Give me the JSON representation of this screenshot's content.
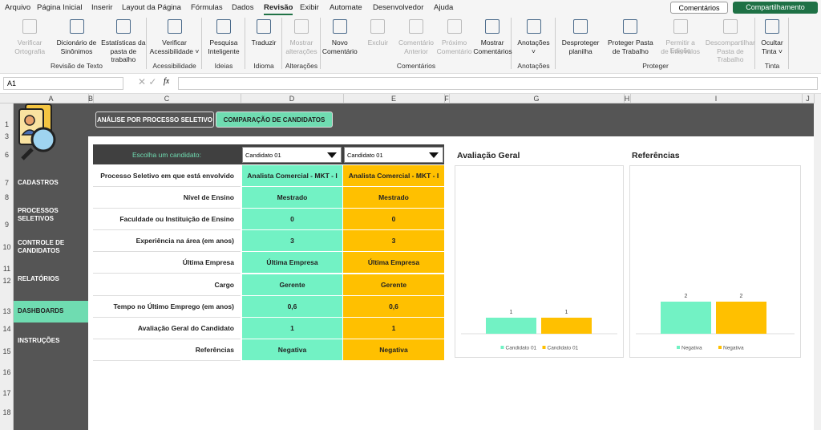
{
  "menu": {
    "tabs": [
      "Arquivo",
      "Página Inicial",
      "Inserir",
      "Layout da Página",
      "Fórmulas",
      "Dados",
      "Revisão",
      "Exibir",
      "Automate",
      "Desenvolvedor",
      "Ajuda"
    ],
    "active_tab_index": 6
  },
  "buttons": {
    "comments": "Comentários",
    "share": "Compartilhamento"
  },
  "ribbon": [
    {
      "group": "Revisão de Texto",
      "items": [
        {
          "label": [
            "Verificar",
            "Ortografia"
          ],
          "disabled": true
        },
        {
          "label": [
            "Dicionário de",
            "Sinônimos"
          ],
          "disabled": false
        },
        {
          "label": [
            "Estatísticas da",
            "pasta de trabalho"
          ],
          "disabled": false
        }
      ]
    },
    {
      "group": "Acessibilidade",
      "items": [
        {
          "label": [
            "Verificar",
            "Acessibilidade ˅"
          ],
          "disabled": false
        }
      ]
    },
    {
      "group": "Ideias",
      "items": [
        {
          "label": [
            "Pesquisa",
            "Inteligente"
          ],
          "disabled": false
        }
      ]
    },
    {
      "group": "Idioma",
      "items": [
        {
          "label": [
            "Traduzir"
          ],
          "disabled": false
        }
      ]
    },
    {
      "group": "Alterações",
      "items": [
        {
          "label": [
            "Mostrar",
            "alterações"
          ],
          "disabled": true
        }
      ]
    },
    {
      "group": "Comentários",
      "items": [
        {
          "label": [
            "Novo",
            "Comentário"
          ],
          "disabled": false
        },
        {
          "label": [
            "Excluir"
          ],
          "disabled": true
        },
        {
          "label": [
            "Comentário",
            "Anterior"
          ],
          "disabled": true
        },
        {
          "label": [
            "Próximo",
            "Comentário"
          ],
          "disabled": true
        },
        {
          "label": [
            "Mostrar",
            "Comentários"
          ],
          "disabled": false
        }
      ]
    },
    {
      "group": "Anotações",
      "items": [
        {
          "label": [
            "Anotações",
            "˅"
          ],
          "disabled": false
        }
      ]
    },
    {
      "group": "Proteger",
      "items": [
        {
          "label": [
            "Desproteger",
            "planilha"
          ],
          "disabled": false
        },
        {
          "label": [
            "Proteger Pasta",
            "de Trabalho"
          ],
          "disabled": false
        },
        {
          "label": [
            "Permitir a Edição",
            "de Intervalos"
          ],
          "disabled": true
        },
        {
          "label": [
            "Descompartilhar",
            "Pasta de Trabalho"
          ],
          "disabled": true
        }
      ]
    },
    {
      "group": "Tinta",
      "items": [
        {
          "label": [
            "Ocultar",
            "Tinta ˅"
          ],
          "disabled": false
        }
      ]
    }
  ],
  "formula_bar": {
    "name_box": "A1",
    "fx": "fx"
  },
  "columns": [
    "A",
    "B",
    "C",
    "D",
    "E",
    "F",
    "G",
    "H",
    "I",
    "J"
  ],
  "rows": [
    "1",
    "3",
    "6",
    "7",
    "8",
    "9",
    "10",
    "11",
    "12",
    "13",
    "14",
    "15",
    "16",
    "17",
    "18"
  ],
  "sidebar": {
    "items": [
      [
        "CADASTROS"
      ],
      [
        "PROCESSOS",
        "SELETIVOS"
      ],
      [
        "CONTROLE DE",
        "CANDIDATOS"
      ],
      [
        "RELATÓRIOS"
      ],
      [
        "DASHBOARDS"
      ],
      [
        "INSTRUÇÕES"
      ]
    ],
    "active_index": 4
  },
  "tabs": {
    "items": [
      "ANÁLISE POR PROCESSO SELETIVO",
      "COMPARAÇÃO DE CANDIDATOS"
    ],
    "active_index": 1
  },
  "comparison": {
    "prompt": "Escolha um candidato:",
    "selected": [
      "Candidato 01",
      "Candidato 01"
    ],
    "rows": [
      [
        "Processo Seletivo em que está envolvido",
        "Analista Comercial - MKT - I",
        "Analista Comercial - MKT - I"
      ],
      [
        "Nível de Ensino",
        "Mestrado",
        "Mestrado"
      ],
      [
        "Faculdade ou Instituição de Ensino",
        "0",
        "0"
      ],
      [
        "Experiência na área (em anos)",
        "3",
        "3"
      ],
      [
        "Última Empresa",
        "Última Empresa",
        "Última Empresa"
      ],
      [
        "Cargo",
        "Gerente",
        "Gerente"
      ],
      [
        "Tempo no Último Emprego (em anos)",
        "0,6",
        "0,6"
      ],
      [
        "Avaliação Geral do Candidato",
        "1",
        "1"
      ],
      [
        "Referências",
        "Negativa",
        "Negativa"
      ]
    ]
  },
  "charts": [
    {
      "type": "bar",
      "title": "Avaliação Geral",
      "series": [
        {
          "name": "Candidato 01",
          "color": "#72f2c4",
          "values": [
            1
          ]
        },
        {
          "name": "Candidato 01",
          "color": "#ffc000",
          "values": [
            1
          ]
        }
      ]
    },
    {
      "type": "bar",
      "title": "Referências",
      "series": [
        {
          "name": "Negativa",
          "color": "#72f2c4",
          "values": [
            2
          ]
        },
        {
          "name": "Negativa",
          "color": "#ffc000",
          "values": [
            2
          ]
        }
      ]
    }
  ]
}
